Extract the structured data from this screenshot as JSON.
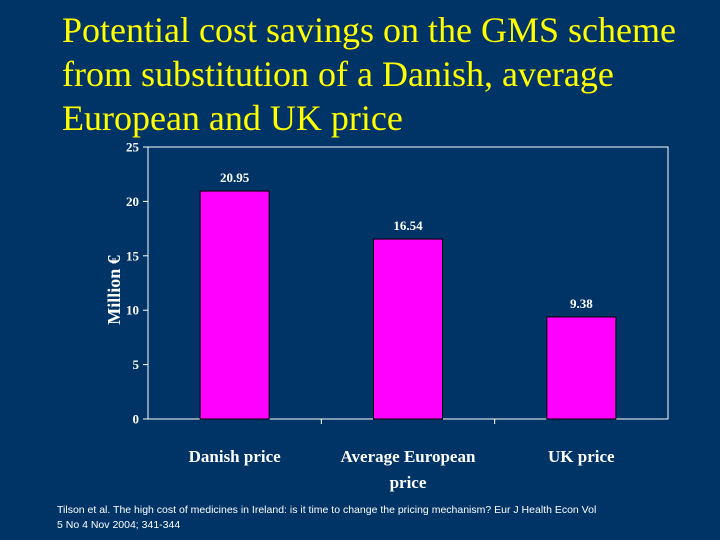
{
  "slide": {
    "title_lines": [
      "Potential cost savings on the GMS scheme",
      "from substitution of a Danish, average",
      "European and UK price"
    ],
    "source_lines": [
      "Tilson et al. The high cost of medicines in Ireland: is it time to change the pricing mechanism? Eur J Health Econ Vol",
      "5 No 4 Nov 2004; 341-344"
    ]
  },
  "colors": {
    "background": "#003366",
    "title": "#ffff00",
    "bar": "#ff00ff",
    "axis_text": "#ffffff"
  },
  "chart_data": {
    "type": "bar",
    "categories": [
      [
        "Danish price"
      ],
      [
        "Average European",
        "price"
      ],
      [
        "UK price"
      ]
    ],
    "values": [
      20.95,
      16.54,
      9.38
    ],
    "data_labels": [
      "20.95",
      "16.54",
      "9.38"
    ],
    "title": "",
    "xlabel": "",
    "ylabel": "Million €",
    "ylim": [
      0,
      25
    ],
    "yticks": [
      0,
      5,
      10,
      15,
      20,
      25
    ],
    "grid": false,
    "legend": "none"
  }
}
